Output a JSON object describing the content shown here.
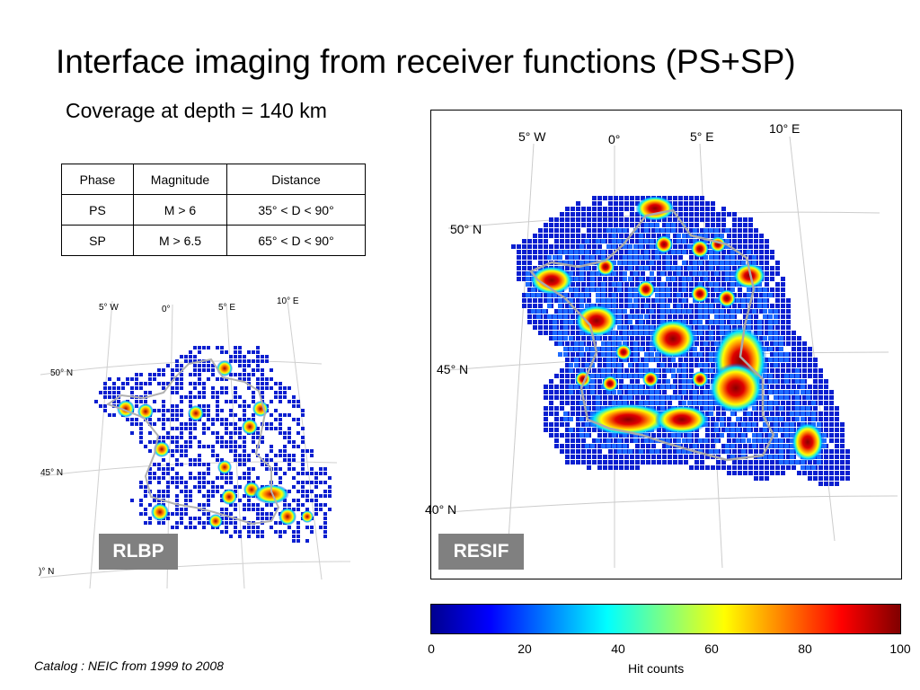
{
  "slide": {
    "title": "Interface imaging from receiver functions (PS+SP)",
    "subtitle": "Coverage at  depth = 140 km",
    "footer": "Catalog : NEIC from 1999 to 2008"
  },
  "table": {
    "headers": [
      "Phase",
      "Magnitude",
      "Distance"
    ],
    "rows": [
      [
        "PS",
        "M > 6",
        "35° < D < 90°"
      ],
      [
        "SP",
        "M > 6.5",
        "65° < D < 90°"
      ]
    ]
  },
  "maps": {
    "rlbp": {
      "label": "RLBP",
      "lon_labels": [
        "5° W",
        "0°",
        "5° E",
        "10° E"
      ],
      "lat_labels": [
        "50° N",
        "45° N",
        ")° N"
      ]
    },
    "resif": {
      "label": "RESIF",
      "lon_labels": [
        "5° W",
        "0°",
        "5° E",
        "10° E"
      ],
      "lat_labels": [
        "50° N",
        "45° N",
        "40° N"
      ]
    }
  },
  "colorbar": {
    "title": "Hit counts",
    "ticks": [
      "0",
      "20",
      "40",
      "60",
      "80",
      "100"
    ],
    "min": 0,
    "max": 100,
    "colors": [
      "#00008f",
      "#0000ff",
      "#0080ff",
      "#00ffff",
      "#80ff80",
      "#ffff00",
      "#ff8000",
      "#ff0000",
      "#800000"
    ]
  },
  "colors": {
    "low": "#0000a8",
    "mid": "#00c8ff",
    "high": "#ffd000",
    "max": "#a00000",
    "border": "#b0b0b0",
    "label_bg": "#808080"
  }
}
